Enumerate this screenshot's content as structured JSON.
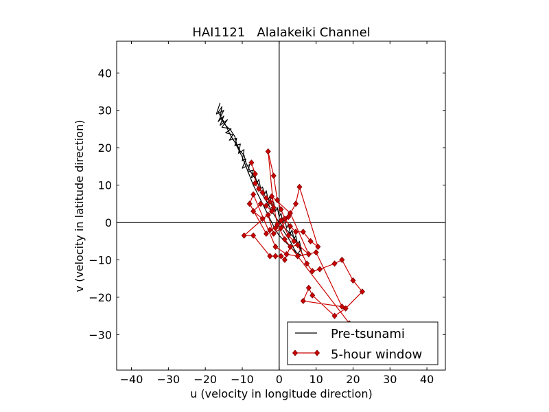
{
  "chart_data": {
    "type": "line",
    "title": "HAI1121   Alalakeiki Channel",
    "xlabel": "u (velocity in longitude direction)",
    "ylabel": "v (velocity in latitude direction)",
    "xlim": [
      -44,
      45
    ],
    "ylim": [
      -39.5,
      48.5
    ],
    "xticks": [
      -40,
      -30,
      -20,
      -10,
      0,
      10,
      20,
      30,
      40
    ],
    "yticks": [
      -30,
      -20,
      -10,
      0,
      10,
      20,
      30,
      40
    ],
    "xtick_labels": [
      "−40",
      "−30",
      "−20",
      "−10",
      "0",
      "10",
      "20",
      "30",
      "40"
    ],
    "ytick_labels": [
      "−30",
      "−20",
      "−10",
      "0",
      "10",
      "20",
      "30",
      "40"
    ],
    "grid": false,
    "reference_lines": {
      "x": 0,
      "y": 0
    },
    "legend_position": "bottom-right",
    "series": [
      {
        "name": "Pre-tsunami",
        "color": "#000000",
        "marker": "none",
        "points": [
          [
            -16.0,
            32.0
          ],
          [
            -17.0,
            29.0
          ],
          [
            -15.0,
            30.0
          ],
          [
            -16.5,
            27.0
          ],
          [
            -15.0,
            28.5
          ],
          [
            -16.0,
            26.0
          ],
          [
            -14.0,
            27.5
          ],
          [
            -15.5,
            25.5
          ],
          [
            -13.0,
            25.0
          ],
          [
            -14.5,
            24.0
          ],
          [
            -12.5,
            23.5
          ],
          [
            -13.5,
            22.0
          ],
          [
            -11.5,
            22.5
          ],
          [
            -12.0,
            20.5
          ],
          [
            -10.5,
            21.0
          ],
          [
            -11.0,
            18.5
          ],
          [
            -9.5,
            19.5
          ],
          [
            -10.0,
            16.5
          ],
          [
            -9.0,
            17.0
          ],
          [
            -10.0,
            14.5
          ],
          [
            -8.0,
            15.5
          ],
          [
            -8.5,
            13.5
          ],
          [
            -7.0,
            14.0
          ],
          [
            -7.5,
            12.0
          ],
          [
            -6.5,
            12.5
          ],
          [
            -6.0,
            10.5
          ],
          [
            -5.5,
            11.5
          ],
          [
            -5.0,
            9.0
          ],
          [
            -4.5,
            9.5
          ],
          [
            -4.0,
            7.5
          ],
          [
            -3.5,
            8.5
          ],
          [
            -3.0,
            6.0
          ],
          [
            -2.5,
            7.0
          ],
          [
            -2.0,
            4.5
          ],
          [
            -1.5,
            5.5
          ],
          [
            -1.0,
            3.0
          ],
          [
            -0.5,
            4.0
          ],
          [
            0.0,
            1.5
          ],
          [
            0.5,
            2.5
          ],
          [
            1.0,
            0.0
          ],
          [
            1.5,
            1.0
          ],
          [
            2.0,
            -1.5
          ],
          [
            2.5,
            -0.5
          ],
          [
            3.0,
            -3.0
          ],
          [
            3.5,
            -2.0
          ],
          [
            4.0,
            -4.5
          ],
          [
            4.5,
            -3.5
          ],
          [
            5.0,
            -6.0
          ],
          [
            5.5,
            -5.0
          ],
          [
            6.0,
            -7.5
          ],
          [
            5.5,
            -6.5
          ],
          [
            6.5,
            -9.0
          ],
          [
            4.5,
            -8.0
          ],
          [
            3.0,
            -6.5
          ],
          [
            1.5,
            -5.0
          ],
          [
            0.0,
            -3.5
          ],
          [
            -1.0,
            -2.0
          ],
          [
            -2.0,
            0.0
          ],
          [
            -3.0,
            2.0
          ],
          [
            -4.0,
            4.0
          ],
          [
            -5.0,
            6.0
          ],
          [
            -6.0,
            8.0
          ],
          [
            -7.0,
            10.0
          ],
          [
            -8.0,
            12.5
          ],
          [
            -9.0,
            15.0
          ],
          [
            -10.0,
            17.5
          ],
          [
            -11.0,
            19.5
          ],
          [
            -12.0,
            21.5
          ],
          [
            -13.0,
            23.0
          ],
          [
            -14.0,
            25.0
          ],
          [
            -15.0,
            27.0
          ],
          [
            -16.5,
            29.5
          ],
          [
            -15.5,
            31.0
          ],
          [
            -16.0,
            28.0
          ],
          [
            -14.5,
            26.0
          ],
          [
            -13.0,
            24.5
          ],
          [
            -12.0,
            23.0
          ],
          [
            -11.5,
            21.0
          ],
          [
            -10.5,
            19.0
          ],
          [
            -9.5,
            18.0
          ],
          [
            -9.0,
            16.0
          ],
          [
            -8.0,
            14.0
          ],
          [
            -7.0,
            12.5
          ],
          [
            -6.0,
            11.0
          ],
          [
            -5.0,
            8.5
          ],
          [
            -4.0,
            6.5
          ],
          [
            -3.0,
            5.0
          ],
          [
            -2.0,
            3.0
          ],
          [
            -1.0,
            1.5
          ],
          [
            0.0,
            0.0
          ],
          [
            1.0,
            -1.0
          ],
          [
            2.5,
            -2.5
          ],
          [
            4.0,
            -4.0
          ],
          [
            5.0,
            -5.5
          ],
          [
            6.0,
            -7.0
          ],
          [
            5.0,
            -8.5
          ],
          [
            4.0,
            -7.0
          ],
          [
            3.0,
            -5.0
          ],
          [
            2.0,
            -3.5
          ],
          [
            1.0,
            -2.0
          ]
        ]
      },
      {
        "name": "5-hour window",
        "color": "#cc0000",
        "marker": "diamond",
        "points": [
          [
            -7.5,
            16.0
          ],
          [
            -6.5,
            13.0
          ],
          [
            -6.5,
            10.5
          ],
          [
            -5.5,
            9.0
          ],
          [
            -4.5,
            8.0
          ],
          [
            -3.5,
            6.5
          ],
          [
            -2.5,
            5.5
          ],
          [
            -1.5,
            4.0
          ],
          [
            -3.0,
            19.0
          ],
          [
            -1.5,
            12.5
          ],
          [
            -0.5,
            6.0
          ],
          [
            0.5,
            3.5
          ],
          [
            1.5,
            1.0
          ],
          [
            3.0,
            -1.0
          ],
          [
            4.5,
            -2.5
          ],
          [
            6.5,
            -2.5
          ],
          [
            8.5,
            -5.0
          ],
          [
            10.5,
            -6.5
          ],
          [
            5.5,
            9.5
          ],
          [
            4.5,
            5.0
          ],
          [
            2.5,
            1.5
          ],
          [
            0.5,
            -1.5
          ],
          [
            -1.5,
            -3.0
          ],
          [
            -3.0,
            2.0
          ],
          [
            -4.5,
            1.0
          ],
          [
            -7.0,
            3.0
          ],
          [
            -5.0,
            5.0
          ],
          [
            -3.5,
            4.5
          ],
          [
            -2.0,
            3.0
          ],
          [
            -9.5,
            -3.5
          ],
          [
            -7.0,
            -3.5
          ],
          [
            -2.5,
            -9.0
          ],
          [
            -1.0,
            -9.0
          ],
          [
            0.5,
            -9.0
          ],
          [
            1.5,
            -10.0
          ],
          [
            3.0,
            -6.5
          ],
          [
            5.0,
            -6.0
          ],
          [
            7.5,
            -11.0
          ],
          [
            9.0,
            -13.0
          ],
          [
            11.0,
            -12.5
          ],
          [
            15.0,
            -11.0
          ],
          [
            17.0,
            -10.0
          ],
          [
            20.0,
            -15.5
          ],
          [
            22.5,
            -18.5
          ],
          [
            18.0,
            -23.0
          ],
          [
            15.0,
            -25.0
          ],
          [
            9.0,
            -19.5
          ],
          [
            8.0,
            -17.5
          ],
          [
            6.5,
            -21.0
          ],
          [
            17.0,
            -22.5
          ],
          [
            10.0,
            -8.0
          ],
          [
            5.0,
            -9.0
          ],
          [
            2.0,
            -8.5
          ],
          [
            -1.0,
            -6.5
          ],
          [
            -7.0,
            7.5
          ],
          [
            -8.0,
            5.0
          ],
          [
            -3.5,
            -3.0
          ],
          [
            -2.5,
            -2.0
          ],
          [
            -1.0,
            -1.5
          ],
          [
            0.5,
            0.5
          ],
          [
            2.5,
            -3.5
          ],
          [
            4.0,
            -5.0
          ],
          [
            8.0,
            -8.5
          ],
          [
            3.0,
            2.5
          ],
          [
            -2.0,
            7.0
          ],
          [
            -0.5,
            -0.5
          ],
          [
            1.5,
            -4.5
          ],
          [
            19.0,
            -27.0
          ]
        ]
      }
    ]
  }
}
